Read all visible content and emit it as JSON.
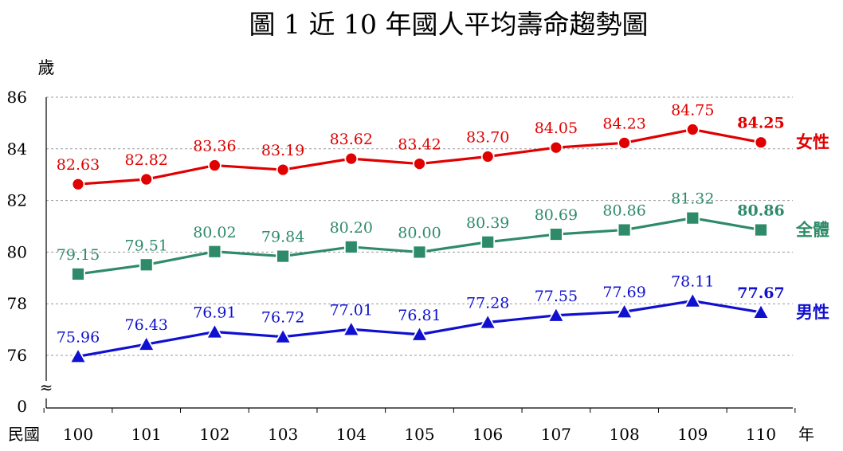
{
  "chart_data": {
    "type": "line",
    "title": "圖 1  近 10 年國人平均壽命趨勢圖",
    "ylabel": "歲",
    "xlabel_prefix": "民國",
    "xlabel_suffix": "年",
    "y_break_label": "0",
    "y_break_symbol": "≈",
    "categories": [
      "100",
      "101",
      "102",
      "103",
      "104",
      "105",
      "106",
      "107",
      "108",
      "109",
      "110"
    ],
    "y_ticks": [
      76,
      78,
      80,
      82,
      84,
      86
    ],
    "ylim": [
      75,
      86
    ],
    "grid": true,
    "series": [
      {
        "name": "女性",
        "color": "#e00000",
        "marker": "circle",
        "values": [
          82.63,
          82.82,
          83.36,
          83.19,
          83.62,
          83.42,
          83.7,
          84.05,
          84.23,
          84.75,
          84.25
        ],
        "labels": [
          "82.63",
          "82.82",
          "83.36",
          "83.19",
          "83.62",
          "83.42",
          "83.70",
          "84.05",
          "84.23",
          "84.75",
          "84.25"
        ]
      },
      {
        "name": "全體",
        "color": "#2e8b6a",
        "marker": "square",
        "values": [
          79.15,
          79.51,
          80.02,
          79.84,
          80.2,
          80.0,
          80.39,
          80.69,
          80.86,
          81.32,
          80.86
        ],
        "labels": [
          "79.15",
          "79.51",
          "80.02",
          "79.84",
          "80.20",
          "80.00",
          "80.39",
          "80.69",
          "80.86",
          "81.32",
          "80.86"
        ]
      },
      {
        "name": "男性",
        "color": "#1010d0",
        "marker": "triangle",
        "values": [
          75.96,
          76.43,
          76.91,
          76.72,
          77.01,
          76.81,
          77.28,
          77.55,
          77.69,
          78.11,
          77.67
        ],
        "labels": [
          "75.96",
          "76.43",
          "76.91",
          "76.72",
          "77.01",
          "76.81",
          "77.28",
          "77.55",
          "77.69",
          "78.11",
          "77.67"
        ]
      }
    ]
  }
}
